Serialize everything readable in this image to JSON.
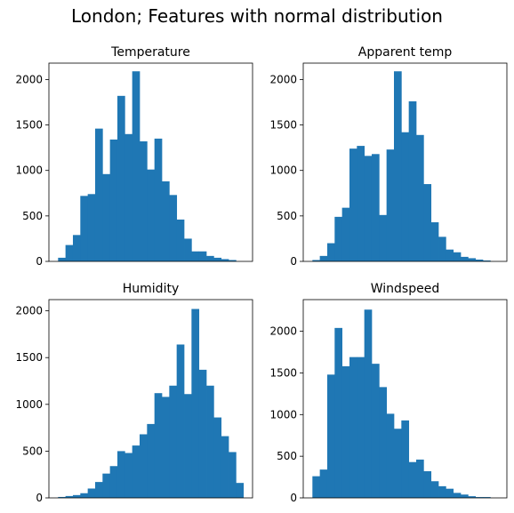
{
  "title": "London; Features with normal distribution",
  "chart_data": [
    {
      "type": "bar",
      "title": "Temperature",
      "xlabel": "",
      "ylabel": "",
      "ylim": [
        0,
        2180
      ],
      "yticks": [
        0,
        500,
        1000,
        1500,
        2000
      ],
      "x_ticks_shown": false,
      "grid": false,
      "color": "#1f77b4",
      "bins": 25,
      "values": [
        40,
        180,
        290,
        720,
        740,
        1460,
        960,
        1340,
        1820,
        1400,
        2090,
        1320,
        1010,
        1350,
        880,
        730,
        460,
        250,
        110,
        110,
        60,
        40,
        25,
        15,
        0
      ]
    },
    {
      "type": "bar",
      "title": "Apparent temp",
      "xlabel": "",
      "ylabel": "",
      "ylim": [
        0,
        2180
      ],
      "yticks": [
        0,
        500,
        1000,
        1500,
        2000
      ],
      "x_ticks_shown": false,
      "grid": false,
      "color": "#1f77b4",
      "bins": 25,
      "values": [
        15,
        60,
        200,
        490,
        590,
        1240,
        1270,
        1160,
        1180,
        510,
        1230,
        2090,
        1420,
        1760,
        1390,
        850,
        430,
        270,
        130,
        100,
        50,
        35,
        20,
        10,
        0
      ]
    },
    {
      "type": "bar",
      "title": "Humidity",
      "xlabel": "",
      "ylabel": "",
      "ylim": [
        0,
        2120
      ],
      "yticks": [
        0,
        500,
        1000,
        1500,
        2000
      ],
      "x_ticks_shown": false,
      "grid": false,
      "color": "#1f77b4",
      "bins": 25,
      "values": [
        10,
        20,
        30,
        50,
        100,
        170,
        260,
        340,
        500,
        480,
        560,
        680,
        790,
        1120,
        1080,
        1200,
        1640,
        1110,
        2020,
        1370,
        1200,
        860,
        660,
        490,
        160
      ]
    },
    {
      "type": "bar",
      "title": "Windspeed",
      "xlabel": "",
      "ylabel": "",
      "ylim": [
        0,
        2380
      ],
      "yticks": [
        0,
        500,
        1000,
        1500,
        2000
      ],
      "x_ticks_shown": false,
      "grid": false,
      "color": "#1f77b4",
      "bins": 25,
      "values": [
        260,
        340,
        1480,
        2040,
        1580,
        1690,
        1690,
        2260,
        1610,
        1330,
        1010,
        830,
        930,
        430,
        460,
        320,
        200,
        140,
        110,
        60,
        40,
        20,
        10,
        10,
        0
      ]
    }
  ]
}
